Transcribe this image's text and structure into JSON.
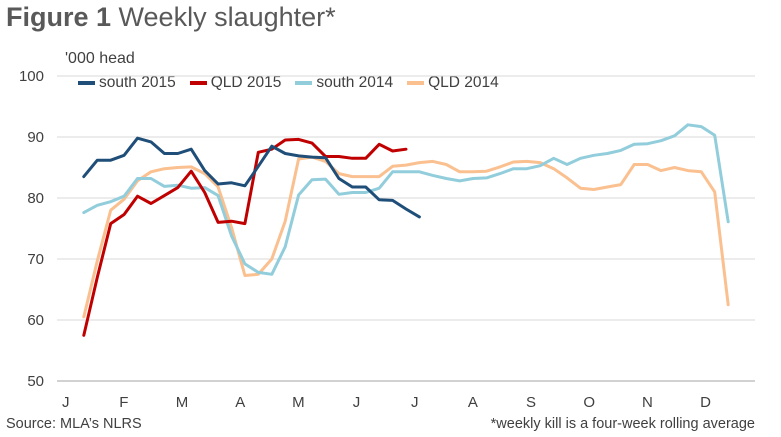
{
  "title_bold": "Figure 1",
  "title_rest": "Weekly slaughter*",
  "source": "Source: MLA’s NLRS",
  "note": "*weekly kill is a four-week rolling average",
  "chart_data": {
    "type": "line",
    "ylabel": "'000 head",
    "ylim": [
      50,
      100
    ],
    "yticks": [
      50,
      60,
      70,
      80,
      90,
      100
    ],
    "xlim": [
      0,
      52
    ],
    "month_labels": [
      "J",
      "F",
      "M",
      "A",
      "M",
      "J",
      "J",
      "A",
      "S",
      "O",
      "N",
      "D"
    ],
    "grid": "horizontal",
    "legend": "top-left",
    "series": [
      {
        "name": "south 2015",
        "color": "#1f4e79",
        "x": [
          2,
          3,
          4,
          5,
          6,
          7,
          8,
          9,
          10,
          11,
          12,
          13,
          14,
          15,
          16,
          17,
          18,
          19,
          20,
          21,
          22,
          23,
          24,
          25,
          26,
          27,
          28
        ],
        "values": [
          83.5,
          86.2,
          86.2,
          87.0,
          89.8,
          89.2,
          87.3,
          87.3,
          88.0,
          84.5,
          82.3,
          82.5,
          82.0,
          85.2,
          88.5,
          87.3,
          86.9,
          86.7,
          86.6,
          83.2,
          81.8,
          81.8,
          79.7,
          79.6,
          78.2,
          76.9,
          null
        ]
      },
      {
        "name": "QLD 2015",
        "color": "#c00000",
        "x": [
          2,
          3,
          4,
          5,
          6,
          7,
          8,
          9,
          10,
          11,
          12,
          13,
          14,
          15,
          16,
          17,
          18,
          19,
          20,
          21,
          22,
          23,
          24,
          25,
          26,
          27
        ],
        "values": [
          57.5,
          67.0,
          75.8,
          77.3,
          80.3,
          79.1,
          80.4,
          81.7,
          84.4,
          80.9,
          76.0,
          76.2,
          75.8,
          87.5,
          88.0,
          89.5,
          89.6,
          89.0,
          86.8,
          86.8,
          86.5,
          86.5,
          88.8,
          87.7,
          88.0,
          null
        ]
      },
      {
        "name": "south 2014",
        "color": "#92cddc",
        "x": [
          2,
          3,
          4,
          5,
          6,
          7,
          8,
          9,
          10,
          11,
          12,
          13,
          14,
          15,
          16,
          17,
          18,
          19,
          20,
          21,
          22,
          23,
          24,
          25,
          26,
          27,
          28,
          29,
          30,
          31,
          32,
          33,
          34,
          35,
          36,
          37,
          38,
          39,
          40,
          41,
          42,
          43,
          44,
          45,
          46,
          47,
          48,
          49,
          50,
          51,
          52
        ],
        "values": [
          77.6,
          78.8,
          79.4,
          80.3,
          83.2,
          83.2,
          81.9,
          82.1,
          81.6,
          81.7,
          80.4,
          73.8,
          69.2,
          67.8,
          67.5,
          72.0,
          80.5,
          83.0,
          83.1,
          80.6,
          80.9,
          80.9,
          81.6,
          84.3,
          84.3,
          84.3,
          83.7,
          83.2,
          82.8,
          83.2,
          83.3,
          84.0,
          84.8,
          84.8,
          85.3,
          86.5,
          85.5,
          86.5,
          87.0,
          87.3,
          87.8,
          88.8,
          88.9,
          89.4,
          90.2,
          92.0,
          91.7,
          90.3,
          76.1,
          null,
          null
        ]
      },
      {
        "name": "QLD 2014",
        "color": "#fac090",
        "x": [
          2,
          3,
          4,
          5,
          6,
          7,
          8,
          9,
          10,
          11,
          12,
          13,
          14,
          15,
          16,
          17,
          18,
          19,
          20,
          21,
          22,
          23,
          24,
          25,
          26,
          27,
          28,
          29,
          30,
          31,
          32,
          33,
          34,
          35,
          36,
          37,
          38,
          39,
          40,
          41,
          42,
          43,
          44,
          45,
          46,
          47,
          48,
          49,
          50,
          51,
          52
        ],
        "values": [
          60.5,
          69.7,
          78.0,
          79.8,
          82.8,
          84.3,
          84.8,
          85.0,
          85.1,
          84.0,
          81.8,
          75.2,
          67.3,
          67.5,
          70.0,
          76.2,
          86.4,
          86.7,
          86.0,
          84.0,
          83.5,
          83.5,
          83.5,
          85.2,
          85.4,
          85.8,
          86.0,
          85.5,
          84.3,
          84.3,
          84.4,
          85.1,
          85.9,
          86.0,
          85.8,
          84.8,
          83.3,
          81.6,
          81.4,
          81.8,
          82.2,
          85.5,
          85.5,
          84.5,
          85.0,
          84.5,
          84.3,
          81.0,
          62.5,
          null,
          null
        ]
      }
    ]
  }
}
